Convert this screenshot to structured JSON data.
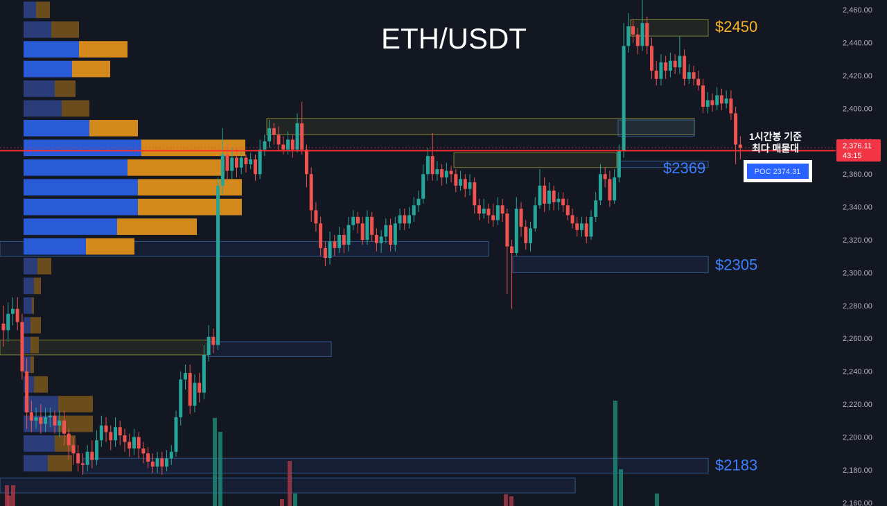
{
  "chart_data": {
    "type": "candlestick",
    "title": "ETH/USDT",
    "price_axis": {
      "ylim": [
        2158,
        2466
      ],
      "ticks": [
        2160,
        2180,
        2200,
        2220,
        2240,
        2260,
        2280,
        2300,
        2320,
        2340,
        2360,
        2380,
        2400,
        2420,
        2440,
        2460
      ],
      "tick_labels": [
        "2,160.00",
        "2,180.00",
        "2,200.00",
        "2,220.00",
        "2,240.00",
        "2,260.00",
        "2,280.00",
        "2,300.00",
        "2,320.00",
        "2,340.00",
        "2,360.00",
        "2,380.00",
        "2,400.00",
        "2,420.00",
        "2,440.00",
        "2,460.00"
      ]
    },
    "current_price": {
      "value": 2376.11,
      "label": "2,376.11",
      "countdown": "43:15",
      "color": "#f23645"
    },
    "poc_line": {
      "value": 2374.31,
      "label": "POC  2374.31",
      "color": "#ff2d2d"
    },
    "annotation": {
      "line1": "1시간봉 기준",
      "line2": "최다 매물대"
    },
    "levels": [
      {
        "label": "$2450",
        "value": 2450,
        "color": "#f7b227"
      },
      {
        "label": "$2369",
        "value": 2369,
        "color": "#3d7eff"
      },
      {
        "label": "$2305",
        "value": 2305,
        "color": "#3d7eff"
      },
      {
        "label": "$2183",
        "value": 2183,
        "color": "#3d7eff"
      }
    ],
    "zones": [
      {
        "top": 2454,
        "bottom": 2444,
        "color": "yellow"
      },
      {
        "top": 2394,
        "bottom": 2384,
        "color": "yellow"
      },
      {
        "top": 2393,
        "bottom": 2383,
        "color": "blue"
      },
      {
        "top": 2373,
        "bottom": 2364,
        "color": "yellow"
      },
      {
        "top": 2368,
        "bottom": 2364,
        "color": "blue"
      },
      {
        "top": 2319,
        "bottom": 2310,
        "color": "blue"
      },
      {
        "top": 2310,
        "bottom": 2300,
        "color": "blue"
      },
      {
        "top": 2259,
        "bottom": 2250,
        "color": "yellow"
      },
      {
        "top": 2258,
        "bottom": 2249,
        "color": "blue"
      },
      {
        "top": 2187,
        "bottom": 2178,
        "color": "blue"
      },
      {
        "top": 2175,
        "bottom": 2166,
        "color": "blue"
      }
    ],
    "volume_profile": [
      {
        "price": 2460.0,
        "up": 18,
        "down": 20
      },
      {
        "price": 2448.0,
        "up": 40,
        "down": 40
      },
      {
        "price": 2436.0,
        "up": 80,
        "down": 70
      },
      {
        "price": 2424.0,
        "up": 70,
        "down": 55
      },
      {
        "price": 2412.0,
        "up": 45,
        "down": 30
      },
      {
        "price": 2400.0,
        "up": 55,
        "down": 40
      },
      {
        "price": 2388.0,
        "up": 95,
        "down": 70
      },
      {
        "price": 2376.0,
        "up": 170,
        "down": 150
      },
      {
        "price": 2364.0,
        "up": 150,
        "down": 140
      },
      {
        "price": 2352.0,
        "up": 165,
        "down": 150
      },
      {
        "price": 2340.0,
        "up": 165,
        "down": 150
      },
      {
        "price": 2328.0,
        "up": 135,
        "down": 115
      },
      {
        "price": 2316.0,
        "up": 90,
        "down": 70
      },
      {
        "price": 2304.0,
        "up": 20,
        "down": 20
      },
      {
        "price": 2292.0,
        "up": 15,
        "down": 10
      },
      {
        "price": 2280.0,
        "up": 12,
        "down": 3
      },
      {
        "price": 2268.0,
        "up": 10,
        "down": 15
      },
      {
        "price": 2256.0,
        "up": 10,
        "down": 12
      },
      {
        "price": 2244.0,
        "up": 10,
        "down": 5
      },
      {
        "price": 2232.0,
        "up": 15,
        "down": 20
      },
      {
        "price": 2220.0,
        "up": 50,
        "down": 50
      },
      {
        "price": 2208.0,
        "up": 50,
        "down": 50
      },
      {
        "price": 2196.0,
        "up": 45,
        "down": 30
      },
      {
        "price": 2184.0,
        "up": 35,
        "down": 35
      }
    ],
    "candles": [
      [
        2269,
        2265,
        2280,
        2255
      ],
      [
        2265,
        2275,
        2282,
        2258
      ],
      [
        2275,
        2278,
        2285,
        2268
      ],
      [
        2278,
        2270,
        2285,
        2265
      ],
      [
        2270,
        2240,
        2275,
        2235
      ],
      [
        2240,
        2215,
        2248,
        2205
      ],
      [
        2215,
        2210,
        2222,
        2203
      ],
      [
        2210,
        2212,
        2218,
        2205
      ],
      [
        2212,
        2208,
        2220,
        2202
      ],
      [
        2208,
        2212,
        2218,
        2203
      ],
      [
        2212,
        2213,
        2218,
        2206
      ],
      [
        2213,
        2207,
        2216,
        2202
      ],
      [
        2207,
        2210,
        2216,
        2200
      ],
      [
        2210,
        2202,
        2216,
        2195
      ],
      [
        2202,
        2195,
        2205,
        2186
      ],
      [
        2195,
        2190,
        2200,
        2183
      ],
      [
        2190,
        2184,
        2195,
        2179
      ],
      [
        2184,
        2183,
        2190,
        2177
      ],
      [
        2183,
        2191,
        2195,
        2179
      ],
      [
        2191,
        2186,
        2198,
        2181
      ],
      [
        2186,
        2198,
        2204,
        2183
      ],
      [
        2198,
        2207,
        2213,
        2194
      ],
      [
        2207,
        2203,
        2212,
        2197
      ],
      [
        2203,
        2198,
        2207,
        2192
      ],
      [
        2198,
        2206,
        2212,
        2194
      ],
      [
        2206,
        2201,
        2210,
        2195
      ],
      [
        2201,
        2197,
        2205,
        2191
      ],
      [
        2197,
        2193,
        2202,
        2188
      ],
      [
        2193,
        2200,
        2205,
        2189
      ],
      [
        2200,
        2193,
        2203,
        2187
      ],
      [
        2193,
        2190,
        2197,
        2184
      ],
      [
        2190,
        2185,
        2194,
        2181
      ],
      [
        2185,
        2182,
        2190,
        2178
      ],
      [
        2182,
        2187,
        2191,
        2178
      ],
      [
        2187,
        2182,
        2191,
        2177
      ],
      [
        2182,
        2187,
        2192,
        2179
      ],
      [
        2187,
        2191,
        2195,
        2183
      ],
      [
        2191,
        2212,
        2216,
        2188
      ],
      [
        2212,
        2235,
        2240,
        2207
      ],
      [
        2235,
        2239,
        2244,
        2229
      ],
      [
        2239,
        2219,
        2244,
        2214
      ],
      [
        2219,
        2233,
        2238,
        2215
      ],
      [
        2233,
        2227,
        2239,
        2221
      ],
      [
        2227,
        2250,
        2256,
        2223
      ],
      [
        2250,
        2261,
        2268,
        2246
      ],
      [
        2261,
        2256,
        2266,
        2251
      ],
      [
        2256,
        2353,
        2358,
        2253
      ],
      [
        2353,
        2372,
        2388,
        2348
      ],
      [
        2372,
        2362,
        2378,
        2356
      ],
      [
        2362,
        2370,
        2376,
        2357
      ],
      [
        2370,
        2364,
        2376,
        2358
      ],
      [
        2364,
        2370,
        2375,
        2360
      ],
      [
        2370,
        2366,
        2372,
        2361
      ],
      [
        2366,
        2369,
        2373,
        2363
      ],
      [
        2369,
        2360,
        2372,
        2356
      ],
      [
        2360,
        2375,
        2381,
        2357
      ],
      [
        2375,
        2380,
        2384,
        2371
      ],
      [
        2380,
        2388,
        2393,
        2376
      ],
      [
        2388,
        2384,
        2391,
        2378
      ],
      [
        2384,
        2378,
        2389,
        2374
      ],
      [
        2378,
        2375,
        2383,
        2372
      ],
      [
        2375,
        2381,
        2386,
        2372
      ],
      [
        2381,
        2375,
        2384,
        2370
      ],
      [
        2375,
        2391,
        2397,
        2373
      ],
      [
        2391,
        2375,
        2404,
        2372
      ],
      [
        2375,
        2360,
        2378,
        2352
      ],
      [
        2360,
        2338,
        2364,
        2331
      ],
      [
        2338,
        2330,
        2343,
        2325
      ],
      [
        2330,
        2315,
        2334,
        2310
      ],
      [
        2315,
        2309,
        2319,
        2304
      ],
      [
        2309,
        2319,
        2325,
        2305
      ],
      [
        2319,
        2315,
        2323,
        2310
      ],
      [
        2315,
        2323,
        2328,
        2312
      ],
      [
        2323,
        2317,
        2327,
        2312
      ],
      [
        2317,
        2329,
        2334,
        2313
      ],
      [
        2329,
        2334,
        2338,
        2326
      ],
      [
        2334,
        2330,
        2337,
        2324
      ],
      [
        2330,
        2320,
        2334,
        2317
      ],
      [
        2320,
        2334,
        2338,
        2317
      ],
      [
        2334,
        2323,
        2337,
        2319
      ],
      [
        2323,
        2318,
        2327,
        2313
      ],
      [
        2318,
        2322,
        2326,
        2312
      ],
      [
        2322,
        2329,
        2333,
        2318
      ],
      [
        2329,
        2317,
        2333,
        2313
      ],
      [
        2317,
        2330,
        2334,
        2313
      ],
      [
        2330,
        2335,
        2339,
        2326
      ],
      [
        2335,
        2330,
        2339,
        2326
      ],
      [
        2330,
        2335,
        2340,
        2327
      ],
      [
        2335,
        2341,
        2346,
        2331
      ],
      [
        2341,
        2345,
        2350,
        2337
      ],
      [
        2345,
        2360,
        2366,
        2342
      ],
      [
        2360,
        2371,
        2376,
        2356
      ],
      [
        2371,
        2360,
        2385,
        2356
      ],
      [
        2360,
        2363,
        2368,
        2356
      ],
      [
        2363,
        2358,
        2366,
        2353
      ],
      [
        2358,
        2362,
        2367,
        2354
      ],
      [
        2362,
        2360,
        2365,
        2355
      ],
      [
        2360,
        2353,
        2363,
        2349
      ],
      [
        2353,
        2357,
        2362,
        2350
      ],
      [
        2357,
        2351,
        2360,
        2346
      ],
      [
        2351,
        2355,
        2360,
        2347
      ],
      [
        2355,
        2341,
        2358,
        2336
      ],
      [
        2341,
        2336,
        2345,
        2332
      ],
      [
        2336,
        2339,
        2345,
        2333
      ],
      [
        2339,
        2335,
        2342,
        2330
      ],
      [
        2335,
        2332,
        2342,
        2328
      ],
      [
        2332,
        2341,
        2346,
        2329
      ],
      [
        2341,
        2336,
        2345,
        2331
      ],
      [
        2336,
        2316,
        2339,
        2287
      ],
      [
        2316,
        2312,
        2320,
        2278
      ],
      [
        2312,
        2339,
        2346,
        2310
      ],
      [
        2339,
        2328,
        2343,
        2322
      ],
      [
        2328,
        2318,
        2332,
        2314
      ],
      [
        2318,
        2327,
        2331,
        2313
      ],
      [
        2327,
        2341,
        2346,
        2325
      ],
      [
        2341,
        2353,
        2363,
        2339
      ],
      [
        2353,
        2342,
        2358,
        2337
      ],
      [
        2342,
        2350,
        2355,
        2338
      ],
      [
        2350,
        2343,
        2353,
        2338
      ],
      [
        2343,
        2345,
        2349,
        2338
      ],
      [
        2345,
        2341,
        2349,
        2337
      ],
      [
        2341,
        2335,
        2345,
        2332
      ],
      [
        2335,
        2330,
        2339,
        2327
      ],
      [
        2330,
        2326,
        2334,
        2322
      ],
      [
        2326,
        2330,
        2334,
        2322
      ],
      [
        2330,
        2322,
        2334,
        2318
      ],
      [
        2322,
        2334,
        2338,
        2320
      ],
      [
        2334,
        2344,
        2349,
        2331
      ],
      [
        2344,
        2360,
        2366,
        2341
      ],
      [
        2360,
        2357,
        2364,
        2352
      ],
      [
        2357,
        2344,
        2362,
        2340
      ],
      [
        2344,
        2358,
        2363,
        2342
      ],
      [
        2358,
        2374,
        2378,
        2355
      ],
      [
        2374,
        2438,
        2452,
        2370
      ],
      [
        2438,
        2450,
        2458,
        2434
      ],
      [
        2450,
        2445,
        2454,
        2440
      ],
      [
        2445,
        2438,
        2449,
        2433
      ],
      [
        2438,
        2452,
        2466,
        2435
      ],
      [
        2452,
        2438,
        2456,
        2433
      ],
      [
        2438,
        2423,
        2443,
        2418
      ],
      [
        2423,
        2418,
        2429,
        2414
      ],
      [
        2418,
        2428,
        2433,
        2414
      ],
      [
        2428,
        2423,
        2432,
        2418
      ],
      [
        2423,
        2429,
        2434,
        2419
      ],
      [
        2429,
        2425,
        2433,
        2421
      ],
      [
        2425,
        2432,
        2444,
        2421
      ],
      [
        2432,
        2418,
        2436,
        2414
      ],
      [
        2418,
        2422,
        2427,
        2415
      ],
      [
        2422,
        2418,
        2426,
        2414
      ],
      [
        2418,
        2414,
        2423,
        2411
      ],
      [
        2414,
        2401,
        2418,
        2397
      ],
      [
        2401,
        2405,
        2410,
        2397
      ],
      [
        2405,
        2402,
        2409,
        2398
      ],
      [
        2402,
        2408,
        2413,
        2399
      ],
      [
        2408,
        2403,
        2412,
        2399
      ],
      [
        2403,
        2406,
        2411,
        2400
      ],
      [
        2406,
        2397,
        2411,
        2393
      ],
      [
        2397,
        2378,
        2401,
        2366
      ],
      [
        2378,
        2376,
        2383,
        2369
      ]
    ],
    "volume_bars": [
      {
        "x": 10,
        "top": 700,
        "color": "red"
      },
      {
        "x": 13,
        "top": 715,
        "color": "red"
      },
      {
        "x": 19,
        "top": 700,
        "color": "red"
      },
      {
        "x": 310,
        "top": 603,
        "color": "green"
      },
      {
        "x": 318,
        "top": 623,
        "color": "green"
      },
      {
        "x": 407,
        "top": 720,
        "color": "red"
      },
      {
        "x": 418,
        "top": 665,
        "color": "red"
      },
      {
        "x": 426,
        "top": 712,
        "color": "green"
      },
      {
        "x": 730,
        "top": 713,
        "color": "red"
      },
      {
        "x": 738,
        "top": 716,
        "color": "red"
      },
      {
        "x": 888,
        "top": 578,
        "color": "green"
      },
      {
        "x": 896,
        "top": 677,
        "color": "green"
      },
      {
        "x": 948,
        "top": 712,
        "color": "green"
      }
    ]
  }
}
